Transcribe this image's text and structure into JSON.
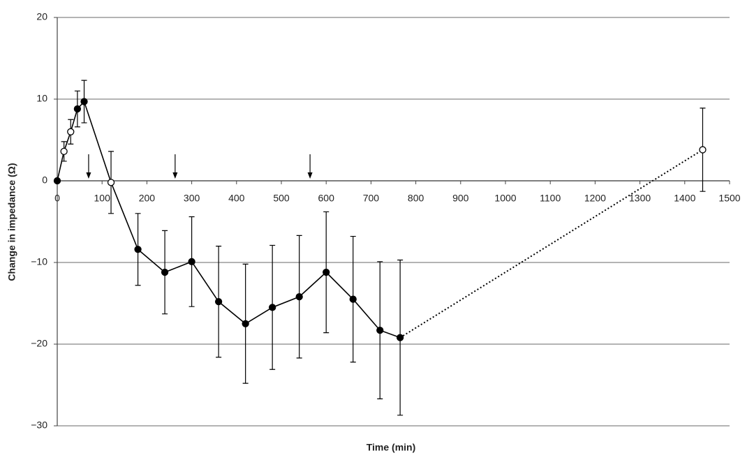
{
  "chart_data": {
    "type": "line",
    "xlabel": "Time (min)",
    "ylabel": "Change in impedance (Ω)",
    "xlim": [
      0,
      1500
    ],
    "xticks": [
      0,
      100,
      200,
      300,
      400,
      500,
      600,
      700,
      800,
      900,
      1000,
      1100,
      1200,
      1300,
      1400,
      1500
    ],
    "ylim": [
      -30,
      20
    ],
    "yticks": [
      {
        "value": -30,
        "label": "−30"
      },
      {
        "value": -20,
        "label": "−20"
      },
      {
        "value": -10,
        "label": "−10"
      },
      0,
      10,
      20
    ],
    "grid": true,
    "series": [
      {
        "color": "#000000",
        "x": [
          0,
          15,
          30,
          45,
          60,
          120,
          180,
          240,
          300,
          360,
          420,
          480,
          540,
          600,
          660,
          720,
          765,
          1440
        ],
        "values": [
          0,
          3.6,
          6.0,
          8.8,
          9.7,
          -0.2,
          -8.4,
          -11.2,
          -9.9,
          -14.8,
          -17.5,
          -15.5,
          -14.2,
          -11.2,
          -14.5,
          -18.3,
          -19.2,
          3.8
        ],
        "errors": [
          0,
          1.2,
          1.5,
          2.2,
          2.6,
          3.8,
          4.4,
          5.1,
          5.5,
          6.8,
          7.3,
          7.6,
          7.5,
          7.4,
          7.7,
          8.4,
          9.5,
          5.1
        ],
        "marker_fill": [
          "filled",
          "open",
          "open",
          "filled",
          "filled",
          "open",
          "filled",
          "filled",
          "filled",
          "filled",
          "filled",
          "filled",
          "filled",
          "filled",
          "filled",
          "filled",
          "filled",
          "open"
        ],
        "line_style": [
          "solid",
          "solid",
          "solid",
          "solid",
          "solid",
          "solid",
          "solid",
          "solid",
          "solid",
          "solid",
          "solid",
          "solid",
          "solid",
          "solid",
          "solid",
          "solid",
          "solid",
          "dotted"
        ]
      }
    ],
    "arrows": [
      70,
      263,
      564
    ]
  }
}
